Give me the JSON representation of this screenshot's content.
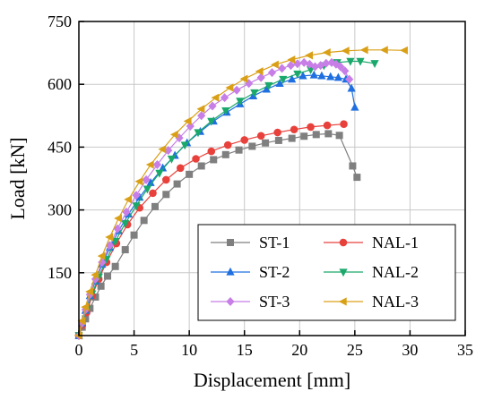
{
  "chart_data": {
    "type": "line",
    "title": "",
    "xlabel": "Displacement [mm]",
    "ylabel": "Load [kN]",
    "xlim": [
      0,
      35
    ],
    "ylim": [
      0,
      750
    ],
    "xticks": [
      "0",
      "5",
      "10",
      "15",
      "20",
      "25",
      "30",
      "35"
    ],
    "yticks": [
      "150",
      "300",
      "450",
      "600",
      "750"
    ],
    "grid": true,
    "legend_position": "bottom-right",
    "series": [
      {
        "name": "ST-1",
        "color": "#7f7f7f",
        "marker": "square",
        "points": [
          [
            0,
            0
          ],
          [
            0.3,
            20
          ],
          [
            0.6,
            40
          ],
          [
            1.0,
            65
          ],
          [
            1.5,
            92
          ],
          [
            2.0,
            118
          ],
          [
            2.6,
            142
          ],
          [
            3.3,
            165
          ],
          [
            4.2,
            205
          ],
          [
            5.0,
            240
          ],
          [
            5.9,
            275
          ],
          [
            6.9,
            308
          ],
          [
            7.9,
            337
          ],
          [
            8.9,
            362
          ],
          [
            10.0,
            385
          ],
          [
            11.1,
            405
          ],
          [
            12.2,
            420
          ],
          [
            13.3,
            432
          ],
          [
            14.5,
            443
          ],
          [
            15.7,
            452
          ],
          [
            16.9,
            460
          ],
          [
            18.1,
            466
          ],
          [
            19.3,
            471
          ],
          [
            20.4,
            476
          ],
          [
            21.5,
            480
          ],
          [
            22.6,
            482
          ],
          [
            23.6,
            478
          ],
          [
            24.8,
            405
          ],
          [
            25.2,
            378
          ]
        ]
      },
      {
        "name": "NAL-1",
        "color": "#e8413c",
        "marker": "circle",
        "points": [
          [
            0,
            0
          ],
          [
            0.3,
            25
          ],
          [
            0.7,
            55
          ],
          [
            1.2,
            95
          ],
          [
            1.8,
            135
          ],
          [
            2.5,
            175
          ],
          [
            3.4,
            220
          ],
          [
            4.4,
            265
          ],
          [
            5.5,
            305
          ],
          [
            6.7,
            340
          ],
          [
            7.9,
            372
          ],
          [
            9.2,
            400
          ],
          [
            10.6,
            422
          ],
          [
            12.0,
            440
          ],
          [
            13.5,
            455
          ],
          [
            15.0,
            467
          ],
          [
            16.5,
            477
          ],
          [
            18.0,
            485
          ],
          [
            19.5,
            492
          ],
          [
            21.0,
            498
          ],
          [
            22.5,
            502
          ],
          [
            24.0,
            505
          ]
        ]
      },
      {
        "name": "ST-2",
        "color": "#1f6fe0",
        "marker": "triangle-up",
        "points": [
          [
            0,
            0
          ],
          [
            0.3,
            30
          ],
          [
            0.6,
            60
          ],
          [
            1.0,
            95
          ],
          [
            1.5,
            130
          ],
          [
            2.1,
            170
          ],
          [
            2.8,
            210
          ],
          [
            3.6,
            250
          ],
          [
            4.5,
            290
          ],
          [
            5.5,
            330
          ],
          [
            6.5,
            365
          ],
          [
            7.6,
            400
          ],
          [
            8.7,
            430
          ],
          [
            9.8,
            460
          ],
          [
            11.0,
            487
          ],
          [
            12.2,
            512
          ],
          [
            13.4,
            533
          ],
          [
            14.6,
            553
          ],
          [
            15.8,
            572
          ],
          [
            17.0,
            588
          ],
          [
            18.2,
            602
          ],
          [
            19.3,
            612
          ],
          [
            20.3,
            620
          ],
          [
            21.3,
            622
          ],
          [
            22.0,
            620
          ],
          [
            22.8,
            618
          ],
          [
            23.5,
            616
          ],
          [
            24.2,
            612
          ],
          [
            24.7,
            590
          ],
          [
            25.0,
            545
          ]
        ]
      },
      {
        "name": "NAL-2",
        "color": "#1aa86b",
        "marker": "triangle-down",
        "points": [
          [
            0,
            0
          ],
          [
            0.3,
            28
          ],
          [
            0.7,
            62
          ],
          [
            1.2,
            100
          ],
          [
            1.8,
            140
          ],
          [
            2.5,
            182
          ],
          [
            3.3,
            225
          ],
          [
            4.2,
            268
          ],
          [
            5.2,
            310
          ],
          [
            6.2,
            350
          ],
          [
            7.3,
            388
          ],
          [
            8.4,
            422
          ],
          [
            9.6,
            455
          ],
          [
            10.8,
            485
          ],
          [
            12.0,
            512
          ],
          [
            13.3,
            537
          ],
          [
            14.6,
            560
          ],
          [
            15.9,
            580
          ],
          [
            17.2,
            597
          ],
          [
            18.5,
            612
          ],
          [
            19.8,
            625
          ],
          [
            21.0,
            635
          ],
          [
            22.2,
            645
          ],
          [
            23.4,
            652
          ],
          [
            24.6,
            655
          ],
          [
            25.5,
            655
          ],
          [
            26.8,
            650
          ]
        ]
      },
      {
        "name": "ST-3",
        "color": "#c77ee6",
        "marker": "diamond",
        "points": [
          [
            0,
            0
          ],
          [
            0.3,
            30
          ],
          [
            0.6,
            62
          ],
          [
            1.0,
            98
          ],
          [
            1.5,
            135
          ],
          [
            2.1,
            175
          ],
          [
            2.8,
            215
          ],
          [
            3.5,
            255
          ],
          [
            4.3,
            295
          ],
          [
            5.2,
            335
          ],
          [
            6.1,
            372
          ],
          [
            7.1,
            408
          ],
          [
            8.1,
            442
          ],
          [
            9.1,
            472
          ],
          [
            10.1,
            500
          ],
          [
            11.1,
            525
          ],
          [
            12.1,
            548
          ],
          [
            13.2,
            568
          ],
          [
            14.3,
            586
          ],
          [
            15.4,
            602
          ],
          [
            16.5,
            616
          ],
          [
            17.5,
            628
          ],
          [
            18.4,
            638
          ],
          [
            19.2,
            645
          ],
          [
            19.8,
            649
          ],
          [
            20.4,
            652
          ],
          [
            20.9,
            648
          ],
          [
            21.4,
            642
          ],
          [
            21.9,
            645
          ],
          [
            22.4,
            650
          ],
          [
            22.9,
            652
          ],
          [
            23.3,
            648
          ],
          [
            23.7,
            642
          ],
          [
            24.1,
            632
          ],
          [
            24.5,
            612
          ]
        ]
      },
      {
        "name": "NAL-3",
        "color": "#d9a017",
        "marker": "triangle-left",
        "points": [
          [
            0,
            0
          ],
          [
            0.3,
            35
          ],
          [
            0.6,
            68
          ],
          [
            1.0,
            105
          ],
          [
            1.5,
            145
          ],
          [
            2.1,
            190
          ],
          [
            2.8,
            235
          ],
          [
            3.6,
            280
          ],
          [
            4.5,
            325
          ],
          [
            5.5,
            368
          ],
          [
            6.5,
            408
          ],
          [
            7.6,
            445
          ],
          [
            8.7,
            480
          ],
          [
            9.9,
            512
          ],
          [
            11.1,
            541
          ],
          [
            12.4,
            568
          ],
          [
            13.7,
            592
          ],
          [
            15.0,
            613
          ],
          [
            16.4,
            631
          ],
          [
            17.8,
            647
          ],
          [
            19.3,
            659
          ],
          [
            20.9,
            669
          ],
          [
            22.5,
            676
          ],
          [
            24.2,
            680
          ],
          [
            25.9,
            682
          ],
          [
            27.7,
            682
          ],
          [
            29.5,
            681
          ]
        ]
      }
    ]
  }
}
